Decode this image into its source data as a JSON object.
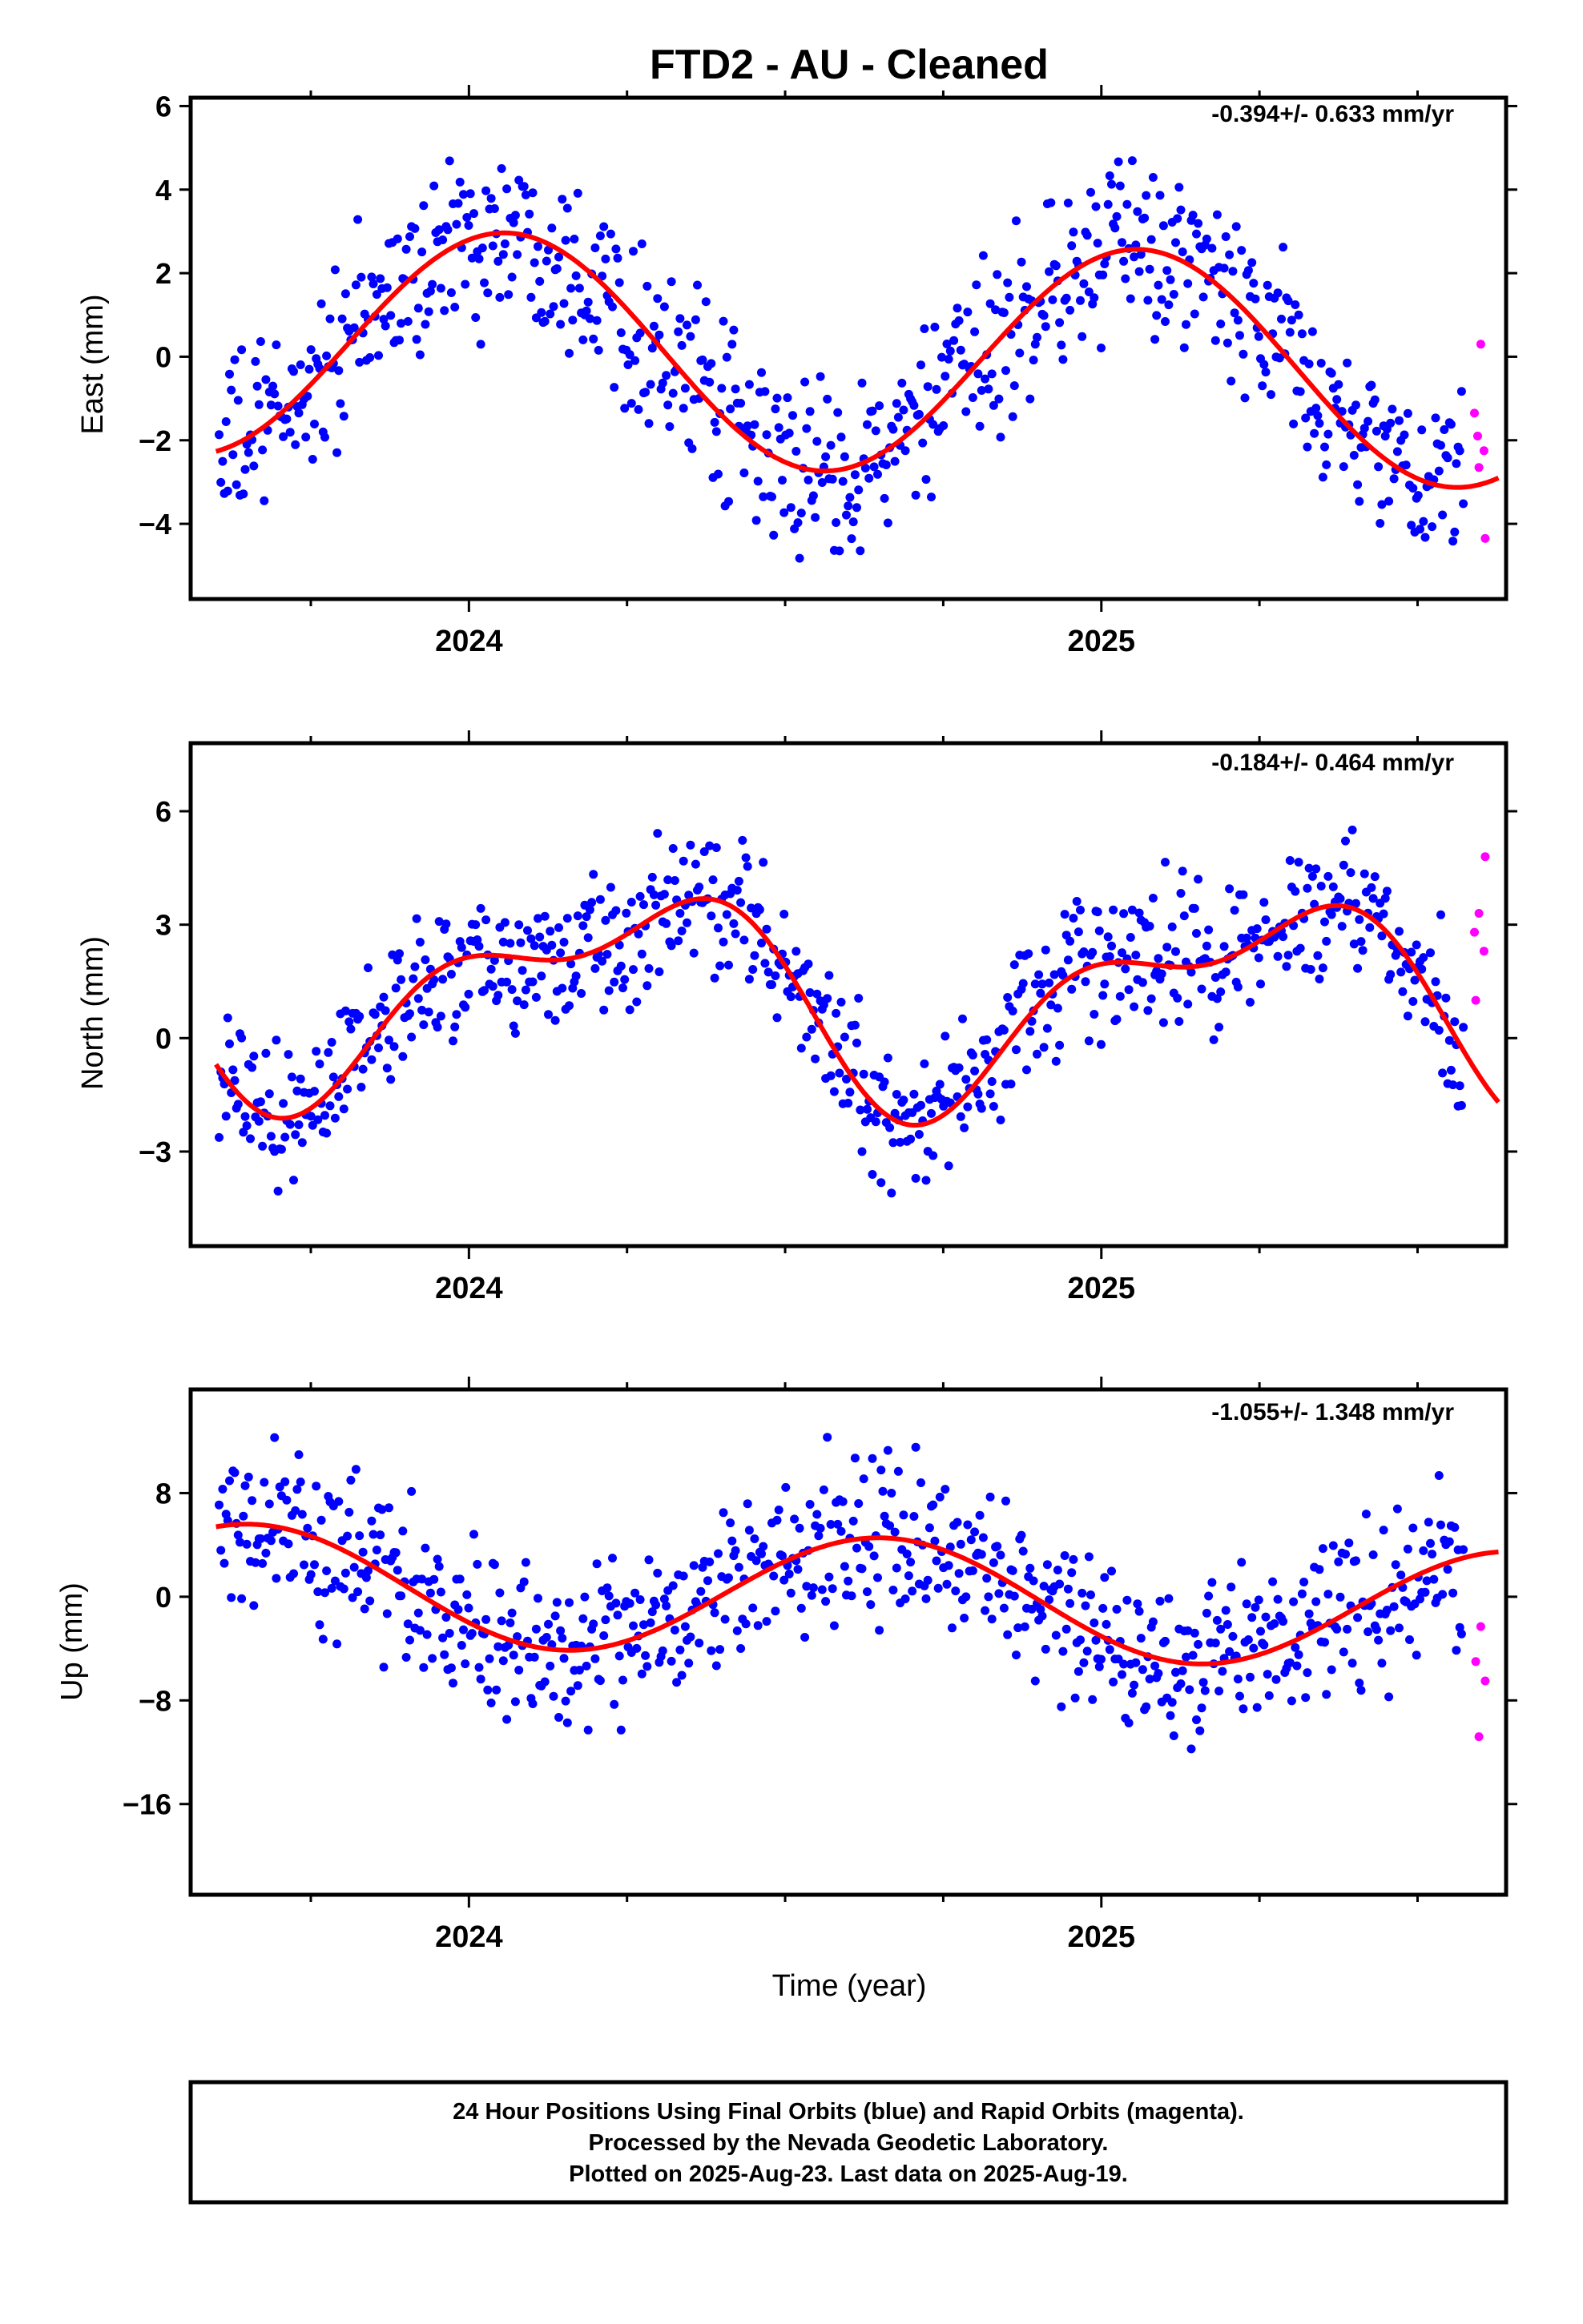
{
  "figure": {
    "title": "FTD2  - AU - Cleaned",
    "xlabel": "Time (year)"
  },
  "footer": {
    "line1": "24 Hour Positions Using Final Orbits (blue) and Rapid Orbits (magenta).",
    "line2": "Processed by the Nevada Geodetic Laboratory.",
    "line3": "Plotted on 2025-Aug-23. Last data on 2025-Aug-19."
  },
  "colors": {
    "final_points": "#0000ff",
    "rapid_points": "#ff00ff",
    "fit_curve": "#ff0000",
    "frame": "#000000"
  },
  "chart_data": [
    {
      "type": "scatter",
      "ylabel": "East (mm)",
      "rate": "-0.394+/- 0.633 mm/yr",
      "xlim": [
        2023.56,
        2025.64
      ],
      "ylim": [
        -5.8,
        6.2
      ],
      "yticks": [
        -4,
        -2,
        0,
        2,
        4,
        6
      ],
      "xticks": [
        2024,
        2025
      ],
      "x_minor_ticks": [
        2023.75,
        2024.25,
        2024.5,
        2024.75,
        2025.25,
        2025.5
      ],
      "fit": {
        "x0": 2023.6,
        "x1": 2025.63,
        "offset": 0.0,
        "trend": -0.394,
        "amp": 2.75,
        "phase": 1.2,
        "amp2": 0.0,
        "phase2": 0.0
      },
      "final": {
        "start": 2023.605,
        "end": 2025.575,
        "step": 0.00274,
        "noise": 1.05
      },
      "rapid": [
        {
          "x": 2025.6,
          "y": 0.3
        },
        {
          "x": 2025.59,
          "y": -1.35
        },
        {
          "x": 2025.595,
          "y": -1.9
        },
        {
          "x": 2025.605,
          "y": -2.25
        },
        {
          "x": 2025.597,
          "y": -2.65
        },
        {
          "x": 2025.607,
          "y": -4.35
        }
      ]
    },
    {
      "type": "scatter",
      "ylabel": "North (mm)",
      "rate": "-0.184+/- 0.464 mm/yr",
      "xlim": [
        2023.56,
        2025.64
      ],
      "ylim": [
        -5.5,
        7.8
      ],
      "yticks": [
        -3,
        0,
        3,
        6
      ],
      "xticks": [
        2024,
        2025
      ],
      "x_minor_ticks": [
        2023.75,
        2024.25,
        2024.5,
        2024.75,
        2025.25,
        2025.5
      ],
      "fit": {
        "x0": 2023.6,
        "x1": 2025.63,
        "offset": 1.15,
        "trend": -0.184,
        "amp": 2.35,
        "phase": 0.03,
        "amp2": 1.2,
        "phase2": 2.4
      },
      "final": {
        "start": 2023.605,
        "end": 2025.575,
        "step": 0.00274,
        "noise": 0.95
      },
      "rapid": [
        {
          "x": 2025.607,
          "y": 4.8
        },
        {
          "x": 2025.597,
          "y": 3.3
        },
        {
          "x": 2025.59,
          "y": 2.8
        },
        {
          "x": 2025.605,
          "y": 2.3
        },
        {
          "x": 2025.592,
          "y": 1.0
        }
      ]
    },
    {
      "type": "scatter",
      "ylabel": "Up (mm)",
      "rate": "-1.055+/- 1.348 mm/yr",
      "xlim": [
        2023.56,
        2025.64
      ],
      "ylim": [
        -23,
        16
      ],
      "yticks": [
        -16,
        -8,
        0,
        8
      ],
      "xticks": [
        2024,
        2025
      ],
      "x_minor_ticks": [
        2023.75,
        2024.25,
        2024.5,
        2024.75,
        2025.25,
        2025.5
      ],
      "fit": {
        "x0": 2023.6,
        "x1": 2025.63,
        "offset": 0.0,
        "trend": -1.055,
        "amp": 4.6,
        "phase": 3.75,
        "amp2": 0.0,
        "phase2": 0.0
      },
      "final": {
        "start": 2023.605,
        "end": 2025.575,
        "step": 0.00274,
        "noise": 3.0
      },
      "rapid": [
        {
          "x": 2025.6,
          "y": -2.3
        },
        {
          "x": 2025.592,
          "y": -5.0
        },
        {
          "x": 2025.607,
          "y": -6.5
        },
        {
          "x": 2025.597,
          "y": -10.8
        }
      ]
    }
  ]
}
